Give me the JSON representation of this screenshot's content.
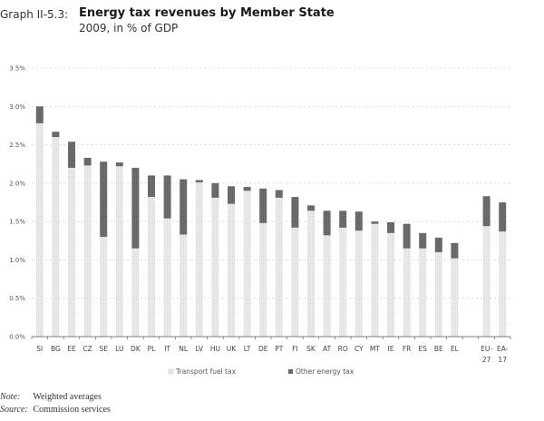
{
  "header": {
    "graph_id": "Graph II-5.3:",
    "title": "Energy tax revenues by Member State",
    "subtitle": "2009, in  % of GDP"
  },
  "footer": {
    "note_key": "Note:",
    "note_value": "Weighted averages",
    "source_key": "Source:",
    "source_value": "Commission services"
  },
  "colors": {
    "transport": "#e4e4e4",
    "other": "#6a6a6a",
    "grid": "#c8c8c8"
  },
  "chart_data": {
    "type": "bar",
    "stacked": true,
    "title": "Energy tax revenues by Member State",
    "subtitle": "2009, in  % of GDP",
    "xlabel": "",
    "ylabel": "",
    "ylim": [
      0,
      3.5
    ],
    "yticks": [
      0,
      0.5,
      1.0,
      1.5,
      2.0,
      2.5,
      3.0,
      3.5
    ],
    "ytick_labels": [
      "0.0%",
      "0.5%",
      "1.0%",
      "1.5%",
      "2.0%",
      "2.5%",
      "3.0%",
      "3.5%"
    ],
    "grid": true,
    "legend_position": "bottom",
    "categories": [
      "SI",
      "BG",
      "EE",
      "CZ",
      "SE",
      "LU",
      "DK",
      "PL",
      "IT",
      "NL",
      "LV",
      "HU",
      "UK",
      "LT",
      "DE",
      "PT",
      "FI",
      "SK",
      "AT",
      "RO",
      "CY",
      "MT",
      "IE",
      "FR",
      "ES",
      "BE",
      "EL",
      "",
      "EU-27",
      "EA-17"
    ],
    "category_labels": [
      [
        "SI"
      ],
      [
        "BG"
      ],
      [
        "EE"
      ],
      [
        "CZ"
      ],
      [
        "SE"
      ],
      [
        "LU"
      ],
      [
        "DK"
      ],
      [
        "PL"
      ],
      [
        "IT"
      ],
      [
        "NL"
      ],
      [
        "LV"
      ],
      [
        "HU"
      ],
      [
        "UK"
      ],
      [
        "LT"
      ],
      [
        "DE"
      ],
      [
        "PT"
      ],
      [
        "FI"
      ],
      [
        "SK"
      ],
      [
        "AT"
      ],
      [
        "RO"
      ],
      [
        "CY"
      ],
      [
        "MT"
      ],
      [
        "IE"
      ],
      [
        "FR"
      ],
      [
        "ES"
      ],
      [
        "BE"
      ],
      [
        "EL"
      ],
      [
        ""
      ],
      [
        "EU-",
        "27"
      ],
      [
        "EA-",
        "17"
      ]
    ],
    "series": [
      {
        "name": "Transport fuel tax",
        "values": [
          2.78,
          2.6,
          2.2,
          2.23,
          1.3,
          2.22,
          1.15,
          1.82,
          1.54,
          1.33,
          2.01,
          1.81,
          1.73,
          1.9,
          1.48,
          1.81,
          1.42,
          1.64,
          1.32,
          1.42,
          1.38,
          1.47,
          1.35,
          1.15,
          1.15,
          1.1,
          1.02,
          null,
          1.44,
          1.37
        ]
      },
      {
        "name": "Other energy tax",
        "values": [
          0.22,
          0.07,
          0.34,
          0.1,
          0.98,
          0.05,
          1.05,
          0.28,
          0.56,
          0.72,
          0.03,
          0.19,
          0.23,
          0.05,
          0.45,
          0.1,
          0.4,
          0.07,
          0.32,
          0.22,
          0.25,
          0.03,
          0.14,
          0.32,
          0.2,
          0.19,
          0.2,
          null,
          0.39,
          0.38
        ]
      }
    ]
  }
}
